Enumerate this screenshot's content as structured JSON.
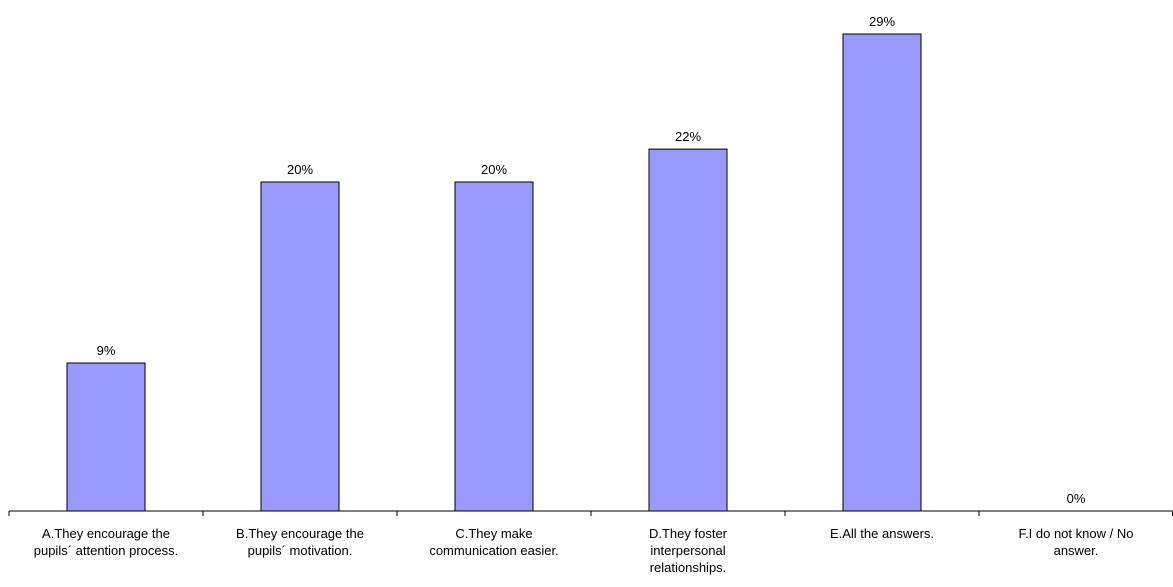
{
  "chart_data": {
    "type": "bar",
    "categories": [
      [
        "A.They encourage the",
        "pupils´ attention process."
      ],
      [
        "B.They encourage the",
        "pupils´ motivation."
      ],
      [
        "C.They make",
        "communication easier."
      ],
      [
        "D.They  foster",
        "interpersonal",
        "relationships."
      ],
      [
        "E.All the answers."
      ],
      [
        "F.I do not know / No",
        "answer."
      ]
    ],
    "values": [
      9,
      20,
      20,
      22,
      29,
      0
    ],
    "data_labels": [
      "9%",
      "20%",
      "20%",
      "22%",
      "29%",
      "0%"
    ],
    "ylim": [
      0,
      29
    ],
    "grid": false,
    "legend": "none",
    "bar_color": "#9999ff",
    "bar_stroke": "#000000"
  }
}
